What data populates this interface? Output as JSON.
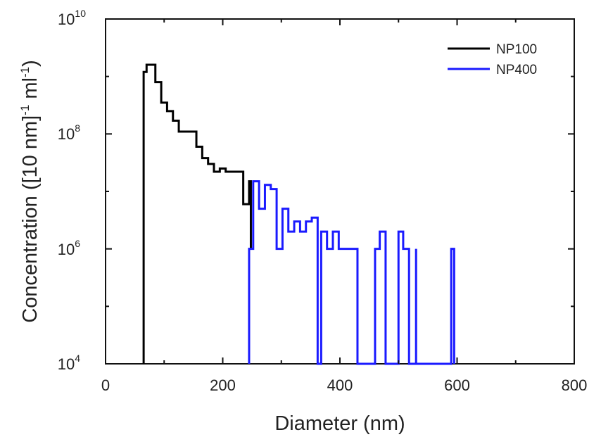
{
  "chart_data": {
    "type": "line",
    "style": "step histogram",
    "xlabel": "Diameter (nm)",
    "ylabel": {
      "main": "Concentration ([10 nm]",
      "sup1": "-1",
      "mid": " ml",
      "sup2": "-1",
      "tail": ")"
    },
    "xlim": [
      0,
      800
    ],
    "ylim": [
      10000,
      10000000000
    ],
    "yscale": "log",
    "xticks": [
      0,
      200,
      400,
      600,
      800
    ],
    "xtick_labels": [
      "0",
      "200",
      "400",
      "600",
      "800"
    ],
    "yticks": [
      10000,
      1000000,
      100000000,
      10000000000
    ],
    "ytick_labels": [
      {
        "base": "10",
        "exp": "4"
      },
      {
        "base": "10",
        "exp": "6"
      },
      {
        "base": "10",
        "exp": "8"
      },
      {
        "base": "10",
        "exp": "10"
      }
    ],
    "legend": {
      "position": "top-right"
    },
    "series": [
      {
        "name": "NP100",
        "color": "#000000",
        "x": [
          65,
          65,
          70,
          75,
          85,
          95,
          105,
          115,
          125,
          135,
          145,
          155,
          165,
          175,
          185,
          195,
          205,
          215,
          225,
          235,
          245,
          248,
          248
        ],
        "y": [
          10000,
          1200000000,
          1600000000,
          1600000000,
          800000000,
          350000000,
          250000000,
          170000000,
          110000000,
          110000000,
          110000000,
          60000000,
          38000000,
          30000000,
          22000000,
          25000000,
          22000000,
          22000000,
          22000000,
          6000000,
          15000000,
          1000000,
          1000000
        ]
      },
      {
        "name": "NP400",
        "color": "#1a1aff",
        "x": [
          245,
          245,
          252,
          262,
          272,
          282,
          292,
          302,
          312,
          322,
          332,
          342,
          352,
          362,
          362,
          368,
          378,
          388,
          398,
          408,
          418,
          430,
          430,
          460,
          460,
          468,
          478,
          478,
          500,
          500,
          508,
          518,
          518,
          530,
          530,
          590,
          590,
          595,
          595
        ],
        "y": [
          10000,
          1000000,
          15000000,
          5000000,
          13000000,
          11000000,
          1000000,
          5000000,
          2000000,
          3000000,
          2000000,
          3000000,
          3500000,
          2000000,
          10000,
          2000000,
          1000000,
          2000000,
          1000000,
          1000000,
          1000000,
          1000000,
          10000,
          1000000,
          1000000,
          2000000,
          2000000,
          10000,
          2000000,
          2000000,
          1000000,
          1000000,
          10000,
          1000000,
          10000,
          1000000,
          1000000,
          1000000,
          10000
        ]
      }
    ]
  }
}
